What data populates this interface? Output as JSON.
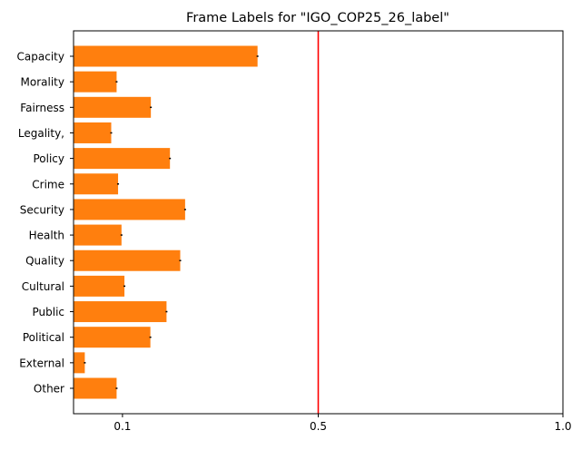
{
  "chart_data": {
    "type": "bar",
    "orientation": "horizontal",
    "title": "Frame Labels for \"IGO_COP25_26_label\"",
    "xlabel": "",
    "ylabel": "",
    "xlim": [
      0.0,
      1.0
    ],
    "x_ticks": [
      {
        "value": 0.1,
        "label": "0.1"
      },
      {
        "value": 0.5,
        "label": "0.5"
      },
      {
        "value": 1.0,
        "label": "1.0"
      }
    ],
    "categories": [
      "Capacity",
      "Morality",
      "Fairness",
      "Legality,",
      "Policy",
      "Crime",
      "Security",
      "Health",
      "Quality",
      "Cultural",
      "Public",
      "Political",
      "External",
      "Other"
    ],
    "values": [
      0.376,
      0.088,
      0.158,
      0.077,
      0.197,
      0.091,
      0.228,
      0.098,
      0.218,
      0.104,
      0.19,
      0.157,
      0.023,
      0.088
    ],
    "bar_color": "#ff7f0e",
    "error_bar_color": "#000000",
    "reference_line": {
      "value": 0.5,
      "color": "#ff0000"
    },
    "grid": false,
    "legend": "none"
  }
}
